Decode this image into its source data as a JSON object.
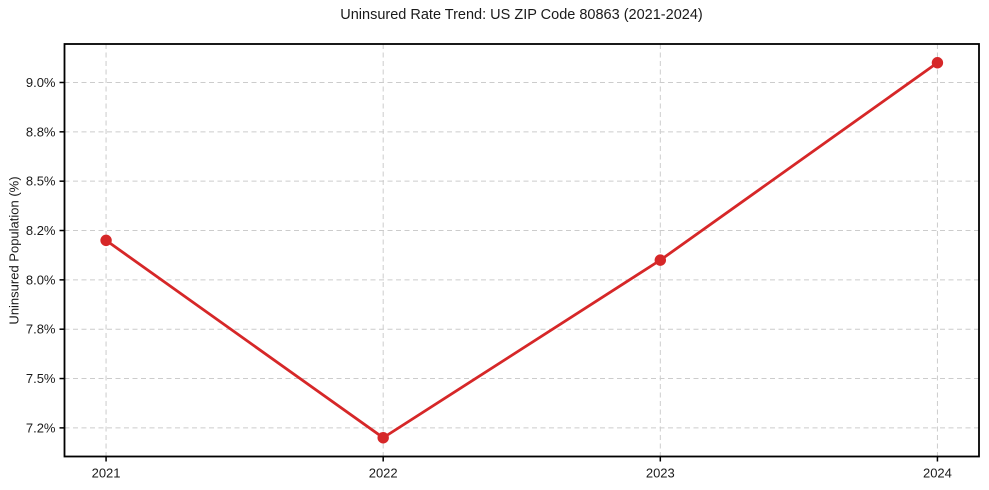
{
  "chart_data": {
    "type": "line",
    "title": "Uninsured Rate Trend: US ZIP Code 80863 (2021-2024)",
    "xlabel": "",
    "ylabel": "Uninsured Population (%)",
    "x": [
      2021,
      2022,
      2023,
      2024
    ],
    "series": [
      {
        "name": "Uninsured Population (%)",
        "values": [
          8.2,
          7.2,
          8.1,
          9.1
        ]
      }
    ],
    "xlim": [
      2020.85,
      2024.15
    ],
    "ylim": [
      7.105,
      9.195
    ],
    "xticks": {
      "values": [
        2021,
        2022,
        2023,
        2024
      ],
      "labels": [
        "2021",
        "2022",
        "2023",
        "2024"
      ]
    },
    "yticks": {
      "values": [
        7.25,
        7.5,
        7.75,
        8.0,
        8.25,
        8.5,
        8.75,
        9.0
      ],
      "labels": [
        "7.2%",
        "7.5%",
        "7.8%",
        "8.0%",
        "8.2%",
        "8.5%",
        "8.8%",
        "9.0%"
      ]
    },
    "grid": true,
    "grid_style": "dashed",
    "legend": false,
    "marker": "circle",
    "colors": {
      "line": "#d62728",
      "grid": "#cccccc",
      "axis": "#000000",
      "text": "#1a1a1a",
      "background": "#ffffff"
    }
  }
}
